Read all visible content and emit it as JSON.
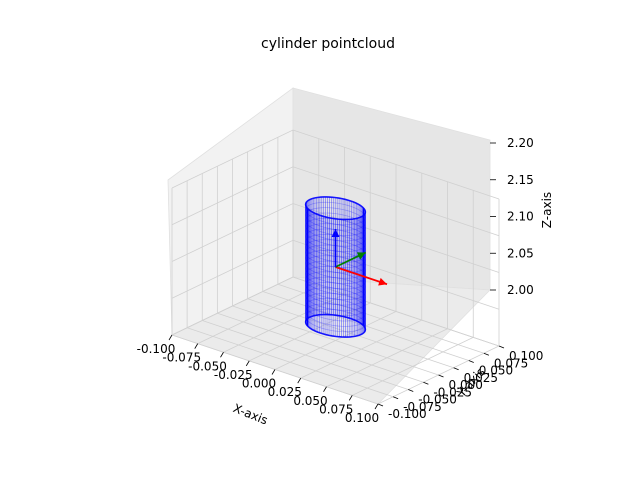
{
  "chart_data": {
    "type": "scatter",
    "projection": "3d",
    "title": "cylinder pointcloud",
    "xlabel": "X-axis",
    "ylabel": "Y-axis",
    "zlabel": "Z-axis",
    "xlim": [
      -0.1,
      0.1
    ],
    "ylim": [
      -0.1,
      0.1
    ],
    "zlim": [
      2.0,
      2.2
    ],
    "x_ticks": [
      "-0.100",
      "-0.075",
      "-0.050",
      "-0.025",
      "0.000",
      "0.025",
      "0.050",
      "0.075",
      "0.100"
    ],
    "y_ticks": [
      "-0.100",
      "-0.075",
      "-0.050",
      "-0.025",
      "0.000",
      "0.025",
      "0.050",
      "0.075",
      "0.100"
    ],
    "z_ticks": [
      "2.00",
      "2.05",
      "2.10",
      "2.15",
      "2.20"
    ],
    "grid": true,
    "series": [
      {
        "kind": "cylinder_points",
        "color": "#0000ff",
        "center": [
          0.0,
          0.0
        ],
        "radius": 0.025,
        "z_range": [
          2.02,
          2.18
        ]
      }
    ],
    "frame_axes": {
      "origin": [
        0.0,
        0.0,
        2.1
      ],
      "x_axis_color": "#ff0000",
      "y_axis_color": "#008000",
      "z_axis_color": "#0000ff",
      "length": 0.025
    }
  }
}
